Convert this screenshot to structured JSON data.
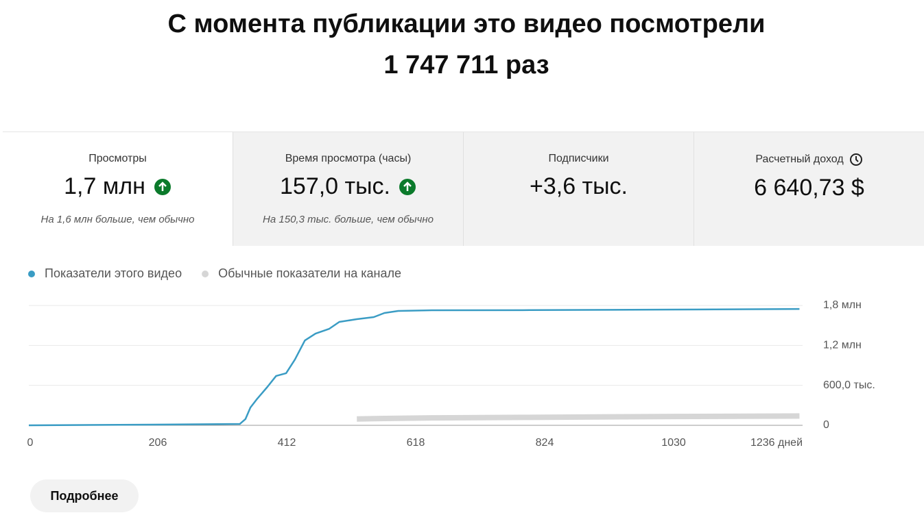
{
  "header": {
    "title": "С момента публикации это видео посмотрели",
    "subtitle": "1 747 711 раз"
  },
  "cards": [
    {
      "label": "Просмотры",
      "value": "1,7 млн",
      "note": "На 1,6 млн больше, чем обычно"
    },
    {
      "label": "Время просмотра (часы)",
      "value": "157,0 тыс.",
      "note": "На 150,3 тыс. больше, чем обычно"
    },
    {
      "label": "Подписчики",
      "value": "+3,6 тыс."
    },
    {
      "label": "Расчетный доход",
      "value": "6 640,73 $"
    }
  ],
  "chart_data": {
    "type": "line",
    "x": [
      0,
      195,
      337,
      346,
      354,
      365,
      381,
      395,
      411,
      425,
      441,
      458,
      480,
      496,
      524,
      551,
      568,
      590,
      644,
      800,
      1028,
      1231
    ],
    "series": [
      {
        "name": "Показатели этого видео",
        "color": "#3a9cc4",
        "values": [
          0,
          10000,
          20000,
          93000,
          267000,
          401000,
          576000,
          741000,
          782000,
          987000,
          1275000,
          1378000,
          1450000,
          1553000,
          1594000,
          1625000,
          1687000,
          1718000,
          1728000,
          1730000,
          1738000,
          1747711
        ]
      },
      {
        "name": "Обычные показатели на канале",
        "color": "#d6d6d6",
        "values": [
          null,
          null,
          null,
          null,
          null,
          null,
          null,
          null,
          null,
          null,
          null,
          null,
          null,
          null,
          95000,
          100000,
          103000,
          106000,
          112000,
          120000,
          132000,
          140000
        ]
      }
    ],
    "xlim": [
      0,
      1236
    ],
    "xticks": [
      0,
      206,
      412,
      618,
      824,
      1030,
      {
        "value": 1236,
        "label": "1236 дней"
      }
    ],
    "ylim": [
      0,
      1800000
    ],
    "yticks": [
      0,
      {
        "value": 600000,
        "label": "600,0 тыс."
      },
      {
        "value": 1200000,
        "label": "1,2 млн"
      },
      {
        "value": 1800000,
        "label": "1,8 млн"
      }
    ],
    "grid": true
  },
  "button": "Подробнее"
}
